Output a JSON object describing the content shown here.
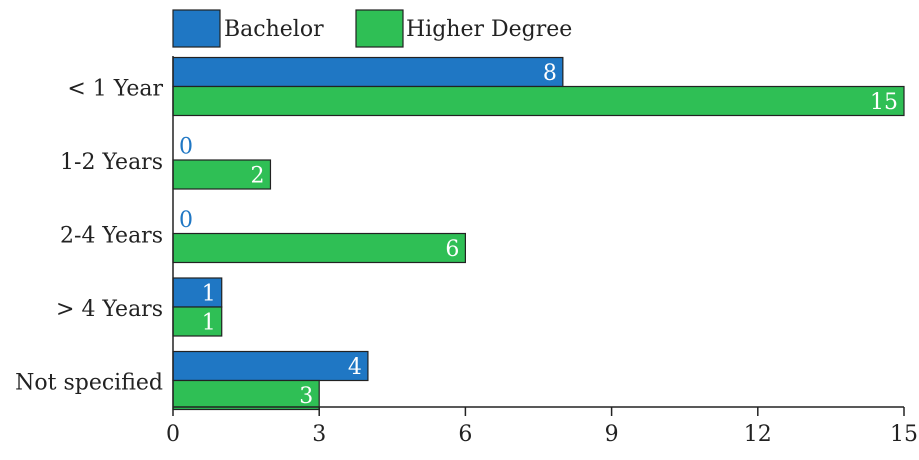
{
  "chart_data": {
    "type": "bar",
    "orientation": "horizontal",
    "title": "",
    "xlabel": "",
    "ylabel": "",
    "categories": [
      "< 1 Year",
      "1-2 Years",
      "2-4 Years",
      "> 4 Years",
      "Not specified"
    ],
    "series": [
      {
        "name": "Bachelor",
        "color": "#1f77c4",
        "values": [
          8,
          0,
          0,
          1,
          4
        ]
      },
      {
        "name": "Higher Degree",
        "color": "#2fbf55",
        "values": [
          15,
          2,
          6,
          1,
          3
        ]
      }
    ],
    "xlim": [
      0,
      15
    ],
    "xticks": [
      0,
      3,
      6,
      9,
      12,
      15
    ],
    "grid": false,
    "legend_position": "top-left",
    "data_labels": true,
    "zero_label_color": "#1f77c4",
    "bar_label_color": "#ffffff",
    "text_color": "#222222"
  }
}
